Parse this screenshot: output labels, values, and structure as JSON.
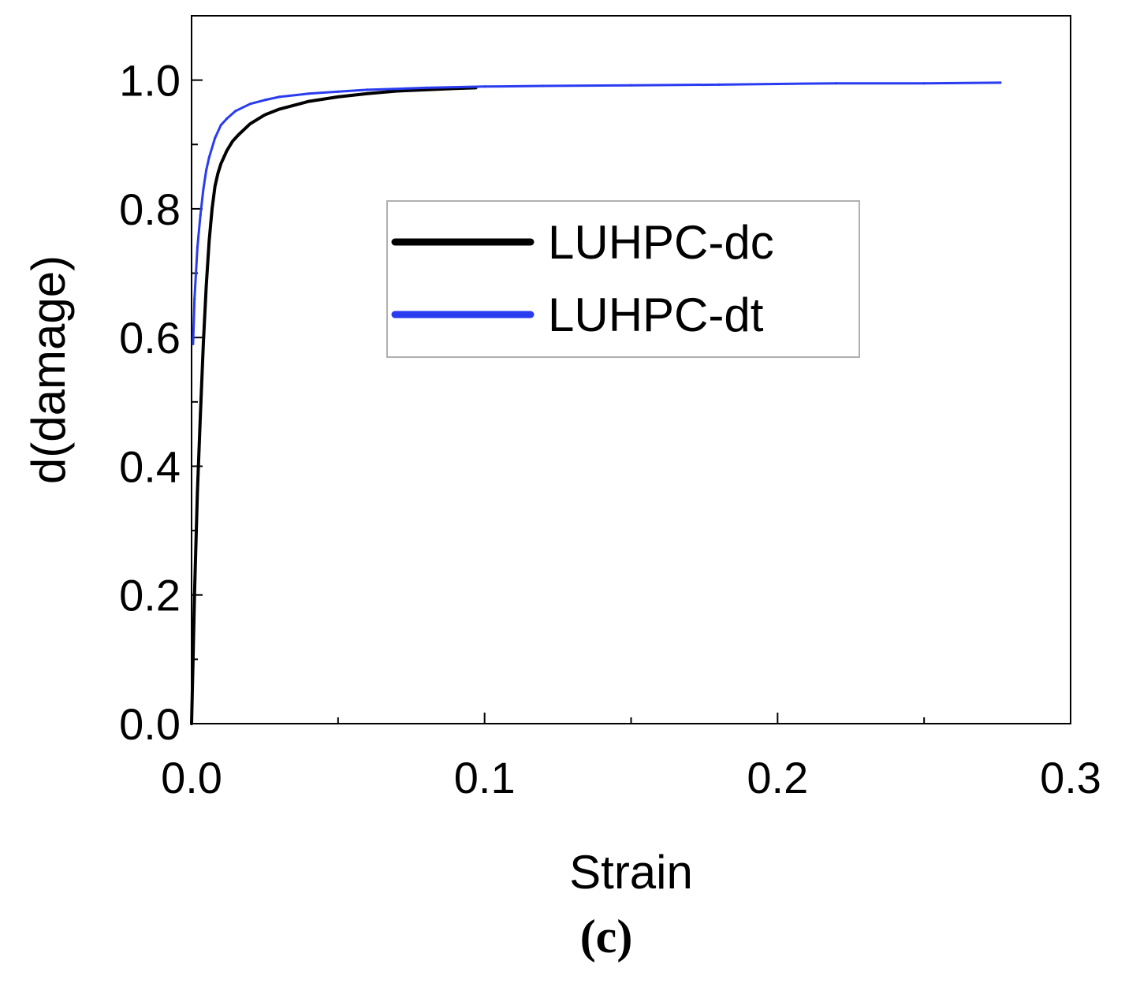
{
  "chart_data": {
    "type": "line",
    "title": "",
    "xlabel": "Strain",
    "ylabel": "d(damage)",
    "xlim": [
      0.0,
      0.3
    ],
    "ylim": [
      0.0,
      1.1
    ],
    "x_ticks": [
      "0.0",
      "0.1",
      "0.2",
      "0.3"
    ],
    "x_tick_values": [
      0.0,
      0.1,
      0.2,
      0.3
    ],
    "y_ticks": [
      "0.0",
      "0.2",
      "0.4",
      "0.6",
      "0.8",
      "1.0"
    ],
    "y_tick_values": [
      0.0,
      0.2,
      0.4,
      0.6,
      0.8,
      1.0
    ],
    "grid": false,
    "legend_position": "center-right",
    "series": [
      {
        "name": "LUHPC-dc",
        "color": "#000000",
        "x": [
          0.0,
          0.0005,
          0.001,
          0.002,
          0.003,
          0.004,
          0.005,
          0.006,
          0.007,
          0.008,
          0.009,
          0.01,
          0.012,
          0.014,
          0.016,
          0.02,
          0.025,
          0.03,
          0.04,
          0.05,
          0.06,
          0.07,
          0.08,
          0.09,
          0.097
        ],
        "y": [
          0.0,
          0.1,
          0.2,
          0.36,
          0.48,
          0.59,
          0.68,
          0.75,
          0.8,
          0.835,
          0.855,
          0.87,
          0.89,
          0.905,
          0.915,
          0.932,
          0.946,
          0.955,
          0.967,
          0.974,
          0.979,
          0.983,
          0.985,
          0.987,
          0.988
        ]
      },
      {
        "name": "LUHPC-dt",
        "color": "#2a3cf0",
        "x": [
          0.0005,
          0.001,
          0.002,
          0.003,
          0.004,
          0.005,
          0.006,
          0.008,
          0.01,
          0.012,
          0.015,
          0.02,
          0.025,
          0.03,
          0.04,
          0.05,
          0.06,
          0.08,
          0.1,
          0.12,
          0.15,
          0.18,
          0.2,
          0.22,
          0.25,
          0.276
        ],
        "y": [
          0.59,
          0.66,
          0.74,
          0.79,
          0.83,
          0.86,
          0.88,
          0.91,
          0.93,
          0.94,
          0.952,
          0.963,
          0.969,
          0.974,
          0.979,
          0.982,
          0.985,
          0.988,
          0.99,
          0.991,
          0.992,
          0.993,
          0.994,
          0.995,
          0.995,
          0.996
        ]
      }
    ]
  },
  "caption": "(c)"
}
